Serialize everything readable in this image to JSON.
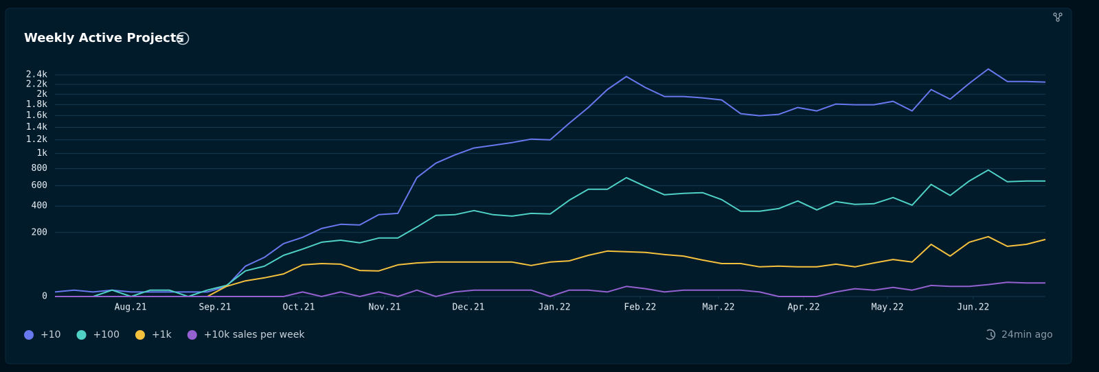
{
  "chart_data": {
    "type": "line",
    "title": "Weekly Active Projects",
    "updated": "24min ago",
    "scale": "sqrt",
    "grid": true,
    "legend": "bottom-left",
    "categories": [
      null,
      null,
      null,
      null,
      null,
      null,
      null,
      null,
      null,
      null,
      null,
      null,
      null,
      null,
      null,
      null,
      null,
      null,
      null,
      null,
      null,
      null,
      null,
      null,
      null,
      null,
      null,
      null,
      null,
      null,
      null,
      null,
      null,
      null,
      null,
      null,
      null,
      null,
      null,
      null,
      null,
      null,
      null,
      null,
      null,
      null,
      null,
      null,
      null,
      null,
      null,
      null,
      null
    ],
    "xticks": [
      {
        "value": 3.97,
        "label": "Aug.21"
      },
      {
        "value": 8.4,
        "label": "Sep.21"
      },
      {
        "value": 12.8,
        "label": "Oct.21"
      },
      {
        "value": 17.31,
        "label": "Nov.21"
      },
      {
        "value": 21.71,
        "label": "Dec.21"
      },
      {
        "value": 26.22,
        "label": "Jan.22"
      },
      {
        "value": 30.72,
        "label": "Feb.22"
      },
      {
        "value": 34.84,
        "label": "Mar.22"
      },
      {
        "value": 39.31,
        "label": "Apr.22"
      },
      {
        "value": 43.71,
        "label": "May.22"
      },
      {
        "value": 48.21,
        "label": "Jun.22"
      }
    ],
    "ylim": [
      0,
      2600
    ],
    "yticks": [
      0,
      200,
      400,
      600,
      800,
      {
        "value": 1000,
        "label": "1k"
      },
      {
        "value": 1200,
        "label": "1.2k"
      },
      {
        "value": 1400,
        "label": "1.4k"
      },
      {
        "value": 1600,
        "label": "1.6k"
      },
      {
        "value": 1800,
        "label": "1.8k"
      },
      {
        "value": 2000,
        "label": "2k"
      },
      {
        "value": 2200,
        "label": "2.2k"
      },
      {
        "value": 2400,
        "label": "2.4k"
      }
    ],
    "series": [
      {
        "name": "+10",
        "color": "#6878ee",
        "values": [
          1,
          2,
          1,
          2,
          1,
          1,
          1,
          1,
          1,
          5,
          45,
          75,
          137,
          171,
          226,
          255,
          250,
          327,
          338,
          691,
          869,
          980,
          1078,
          1118,
          1159,
          1211,
          1200,
          1467,
          1747,
          2093,
          2365,
          2134,
          1956,
          1956,
          1929,
          1889,
          1634,
          1598,
          1622,
          1747,
          1684,
          1811,
          1798,
          1798,
          1863,
          1684,
          2093,
          1903,
          2220,
          2531,
          2261,
          2261,
          2247
        ]
      },
      {
        "name": "+100",
        "color": "#4fd1c5",
        "values": [
          0,
          0,
          0,
          2,
          0,
          2,
          2,
          0,
          2,
          6,
          32,
          45,
          83,
          110,
          144,
          155,
          141,
          167,
          167,
          236,
          322,
          327,
          361,
          327,
          316,
          338,
          333,
          453,
          562,
          562,
          691,
          591,
          506,
          520,
          527,
          459,
          355,
          355,
          378,
          446,
          367,
          440,
          415,
          421,
          479,
          408,
          614,
          499,
          652,
          782,
          644,
          652,
          652
        ]
      },
      {
        "name": "+1k",
        "color": "#f6c23e",
        "values": [
          0,
          0,
          0,
          0,
          0,
          0,
          0,
          0,
          0,
          5,
          12,
          17,
          25,
          49,
          53,
          51,
          33,
          32,
          49,
          55,
          58,
          58,
          58,
          58,
          58,
          47,
          58,
          62,
          83,
          101,
          98,
          95,
          86,
          80,
          65,
          53,
          53,
          43,
          45,
          43,
          43,
          51,
          43,
          55,
          67,
          58,
          133,
          80,
          144,
          175,
          123,
          133,
          159
        ]
      },
      {
        "name": "+10k sales per week",
        "color": "#9461d0",
        "values": [
          0,
          0,
          0,
          0,
          0,
          0,
          0,
          0,
          0,
          0,
          0,
          0,
          0,
          1,
          0,
          1,
          0,
          1,
          0,
          2,
          0,
          1,
          2,
          2,
          2,
          2,
          0,
          2,
          2,
          1,
          5,
          3,
          1,
          2,
          2,
          2,
          2,
          1,
          0,
          0,
          0,
          1,
          3,
          2,
          4,
          2,
          6,
          5,
          5,
          7,
          10,
          9,
          9
        ]
      }
    ]
  }
}
